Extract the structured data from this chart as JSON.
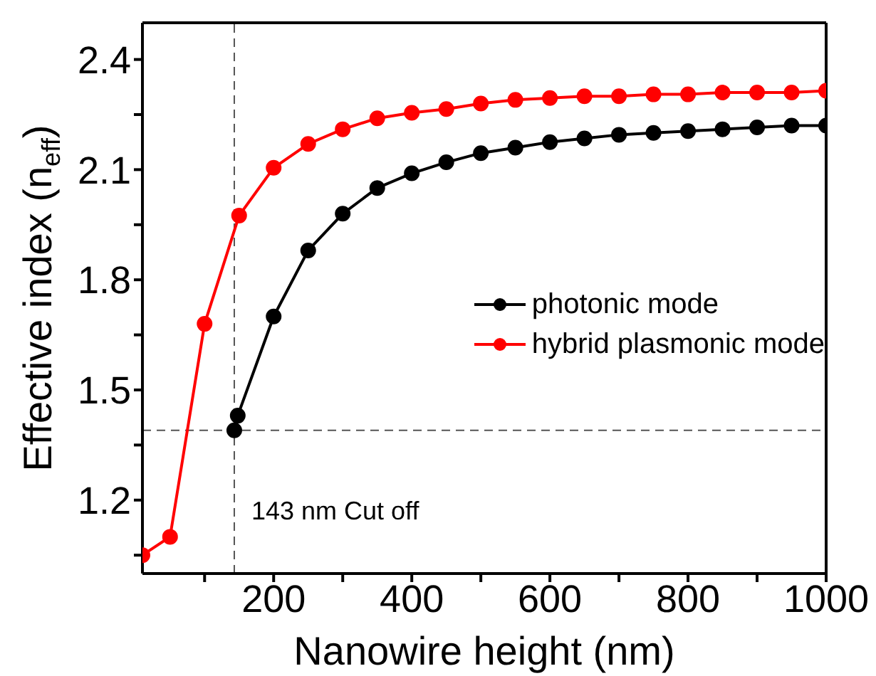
{
  "chart_data": {
    "type": "line",
    "xlabel": "Nanowire height (nm)",
    "ylabel": "Effective index (n$_{eff}$)",
    "xlim": [
      10,
      1000
    ],
    "ylim": [
      1.0,
      2.5
    ],
    "xticks": [
      {
        "value": 100,
        "label": null
      },
      200,
      {
        "value": 300,
        "label": null
      },
      400,
      {
        "value": 500,
        "label": null
      },
      600,
      {
        "value": 700,
        "label": null
      },
      800,
      {
        "value": 900,
        "label": null
      },
      1000
    ],
    "yticks": [
      {
        "value": 1.05,
        "label": null
      },
      1.2,
      {
        "value": 1.35,
        "label": null
      },
      1.5,
      {
        "value": 1.65,
        "label": null
      },
      1.8,
      {
        "value": 1.95,
        "label": null
      },
      2.1,
      {
        "value": 2.25,
        "label": null
      },
      2.4
    ],
    "series": [
      {
        "name": "photonic mode",
        "color": "#000000",
        "x": [
          143,
          148,
          200,
          250,
          300,
          350,
          400,
          450,
          500,
          550,
          600,
          650,
          700,
          750,
          800,
          850,
          900,
          950,
          1000
        ],
        "values": [
          1.39,
          1.43,
          1.7,
          1.88,
          1.98,
          2.05,
          2.09,
          2.12,
          2.145,
          2.16,
          2.175,
          2.185,
          2.195,
          2.2,
          2.205,
          2.21,
          2.215,
          2.22,
          2.22
        ]
      },
      {
        "name": "hybrid plasmonic mode",
        "color": "#ff0000",
        "x": [
          10,
          50,
          100,
          150,
          200,
          250,
          300,
          350,
          400,
          450,
          500,
          550,
          600,
          650,
          700,
          750,
          800,
          850,
          900,
          950,
          1000
        ],
        "values": [
          1.05,
          1.1,
          1.68,
          1.975,
          2.105,
          2.17,
          2.21,
          2.24,
          2.255,
          2.265,
          2.28,
          2.29,
          2.295,
          2.3,
          2.3,
          2.305,
          2.305,
          2.31,
          2.31,
          2.31,
          2.315
        ]
      }
    ],
    "ref_lines": [
      {
        "axis": "x",
        "value": 143,
        "label": "143 nm Cut off",
        "color": "#555555",
        "line_style": "dashed"
      },
      {
        "axis": "y",
        "value": 1.39,
        "label": null,
        "color": "#555555",
        "line_style": "dashed"
      }
    ],
    "legend": "right",
    "marker": "circle",
    "line_style": "solid"
  }
}
